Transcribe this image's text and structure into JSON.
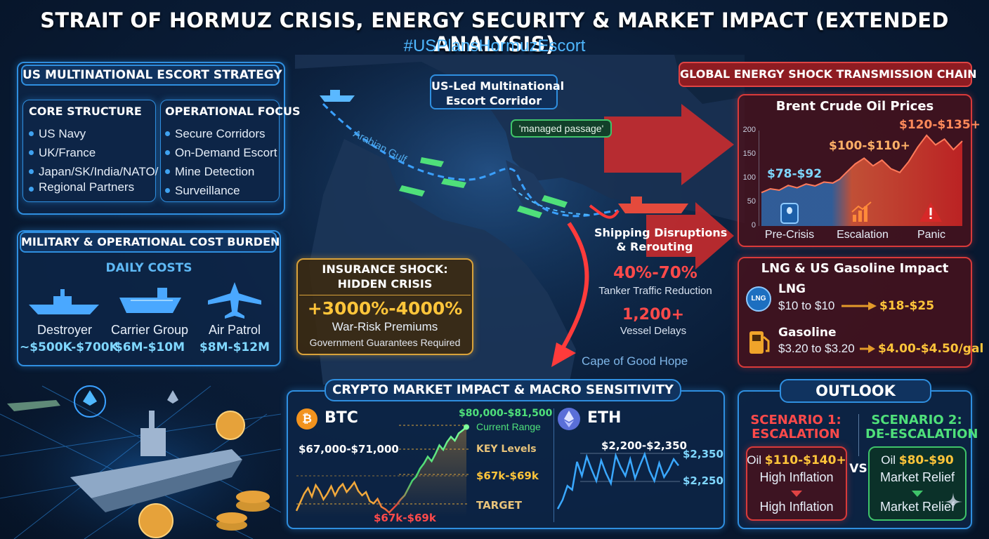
{
  "header": {
    "title": "STRAIT OF HORMUZ CRISIS, ENERGY SECURITY & MARKET IMPACT (EXTENDED ANALYSIS)",
    "hashtag": "#USPlansHormuzEscort"
  },
  "escort_strategy": {
    "title": "US MULTINATIONAL ESCORT STRATEGY",
    "core_structure": {
      "title": "CORE STRUCTURE",
      "items": [
        "US Navy",
        "UK/France",
        "Japan/SK/India/NATO/",
        "Regional Partners"
      ]
    },
    "operational_focus": {
      "title": "OPERATIONAL FOCUS",
      "items": [
        "Secure Corridors",
        "On-Demand Escort",
        "Mine Detection",
        "Surveillance"
      ]
    }
  },
  "cost_burden": {
    "title": "MILITARY & OPERATIONAL COST BURDEN",
    "subtitle": "DAILY COSTS",
    "items": [
      {
        "label": "Destroyer",
        "value": "~$500K-$700K",
        "icon": "destroyer-icon"
      },
      {
        "label": "Carrier Group",
        "value": "$6M-$10M",
        "icon": "carrier-icon"
      },
      {
        "label": "Air Patrol",
        "value": "$8M-$12M",
        "icon": "aircraft-icon"
      }
    ]
  },
  "map": {
    "corridor_label_1": "US-Led Multinational",
    "corridor_label_2": "Escort Corridor",
    "bubble": "'managed passage'",
    "gulf_label": "Arabian Gulf",
    "shipping_title_1": "Shipping Disruptions",
    "shipping_title_2": "& Rerouting",
    "traffic_value": "40%-70%",
    "traffic_label": "Tanker Traffic Reduction",
    "delay_value": "1,200+",
    "delay_label": "Vessel Delays",
    "cape_label": "Cape of Good Hope"
  },
  "insurance": {
    "title_1": "INSURANCE SHOCK:",
    "title_2": "HIDDEN CRISIS",
    "value": "+3000%-4000%",
    "label": "War-Risk Premiums",
    "note": "Government Guarantees Required"
  },
  "energy_chain": {
    "title": "GLOBAL ENERGY SHOCK TRANSMISSION CHAIN"
  },
  "chart_data": [
    {
      "type": "area",
      "title": "Brent Crude Oil Prices",
      "categories": [
        "Pre-Crisis",
        "Escalation",
        "Panic"
      ],
      "y_ticks": [
        0,
        50,
        100,
        150,
        200
      ],
      "ylim": [
        0,
        200
      ],
      "range_labels": [
        "$78-$92",
        "$100-$110+",
        "$120-$135+"
      ],
      "series": [
        {
          "x": [
            0,
            0.4,
            0.8,
            1.2,
            1.6,
            2.0,
            2.4,
            2.8,
            3.2,
            3.5,
            3.8,
            4.2,
            4.6,
            5.0,
            5.4,
            5.8,
            6.2,
            6.6,
            7.0,
            7.4,
            7.8,
            8.2,
            8.6,
            9.0
          ],
          "values": [
            70,
            78,
            75,
            85,
            80,
            88,
            84,
            92,
            90,
            98,
            112,
            130,
            142,
            126,
            138,
            120,
            112,
            135,
            165,
            190,
            170,
            182,
            160,
            178
          ]
        }
      ],
      "grid": false
    },
    {
      "type": "line",
      "title": "BTC",
      "price_labels": [
        "$67,000-$71,000",
        "$80,000-$81,500",
        "Current Range",
        "KEY Levels",
        "$67k-$69k",
        "TARGET",
        "$67k-$69k"
      ],
      "x": [
        0,
        1,
        2,
        3,
        4,
        5,
        6,
        7,
        8,
        9,
        10,
        11,
        12,
        13,
        14,
        15,
        16,
        17,
        18,
        19,
        20,
        21,
        22,
        23,
        24,
        25,
        26,
        27,
        28,
        29,
        30,
        31,
        32,
        33,
        34,
        35,
        36,
        37,
        38,
        39,
        40,
        41,
        42,
        43,
        44
      ],
      "series": [
        {
          "values": [
            66.5,
            68,
            69.5,
            70.5,
            69,
            71,
            70,
            68.5,
            69.5,
            70.8,
            69.2,
            70.5,
            71.2,
            69.8,
            70.6,
            71.5,
            70,
            69.2,
            69.8,
            68.2,
            67.8,
            68.6,
            67.2,
            66.8,
            66.2,
            66.9,
            67.6,
            68.5,
            69.2,
            70.5,
            71.8,
            72.5,
            73.9,
            74.8,
            76,
            75.2,
            76.5,
            78,
            77.2,
            78.6,
            79.5,
            78.8,
            80.1,
            80.6,
            81.2
          ]
        }
      ]
    },
    {
      "type": "line",
      "title": "ETH",
      "price_labels": [
        "$2,200-$2,350",
        "$2,350",
        "$2,250"
      ],
      "x": [
        0,
        1,
        2,
        3,
        4,
        5,
        6,
        7,
        8,
        9,
        10,
        11,
        12,
        13,
        14,
        15,
        16,
        17,
        18,
        19,
        20,
        21,
        22,
        23,
        24,
        25
      ],
      "series": [
        {
          "values": [
            2130,
            2165,
            2220,
            2205,
            2315,
            2260,
            2335,
            2285,
            2240,
            2320,
            2270,
            2230,
            2340,
            2295,
            2260,
            2325,
            2250,
            2300,
            2345,
            2280,
            2240,
            2310,
            2255,
            2285,
            2325,
            2300
          ]
        }
      ]
    }
  ],
  "lng_panel": {
    "title": "LNG & US Gasoline Impact",
    "lng_label": "LNG",
    "lng_icon_text": "LNG",
    "lng_from": "$10 to $10",
    "lng_to": "$18-$25",
    "gas_label": "Gasoline",
    "gas_from": "$3.20 to $3.20",
    "gas_to": "$4.00-$4.50/gal"
  },
  "crypto": {
    "title": "CRYPTO MARKET IMPACT & MACRO SENSITIVITY",
    "btc_name": "BTC",
    "eth_name": "ETH"
  },
  "outlook": {
    "title": "OUTLOOK",
    "vs": "VS",
    "scenario1": {
      "title_1": "SCENARIO 1:",
      "title_2": "ESCALATION",
      "oil_prefix": "Oil ",
      "oil_value": "$110-$140+",
      "line2": "High Inflation",
      "line3": "High Inflation"
    },
    "scenario2": {
      "title_1": "SCENARIO 2:",
      "title_2": "DE-ESCALATION",
      "oil_prefix": "Oil ",
      "oil_value": "$80-$90",
      "line2": "Market Relief",
      "line3": "Market Relief"
    }
  }
}
